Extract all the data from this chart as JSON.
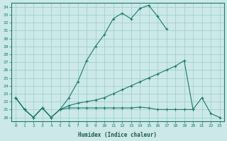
{
  "title": "",
  "xlabel": "Humidex (Indice chaleur)",
  "bg_color": "#cce8e8",
  "grid_color": "#99cccc",
  "line_color": "#1a7a6a",
  "x_ticks": [
    0,
    1,
    2,
    3,
    4,
    5,
    6,
    7,
    8,
    9,
    10,
    11,
    12,
    13,
    14,
    15,
    16,
    17,
    18,
    19,
    20,
    21,
    22,
    23
  ],
  "ylim": [
    19.5,
    34.5
  ],
  "xlim": [
    -0.5,
    23.5
  ],
  "curve1_y": [
    22.5,
    21.0,
    20.0,
    21.2,
    20.0,
    21.0,
    22.5,
    24.5,
    27.2,
    29.0,
    30.5,
    32.5,
    33.2,
    32.5,
    33.8,
    34.2,
    32.8,
    31.2,
    null,
    null,
    null,
    null,
    null,
    null
  ],
  "curve2_y": [
    22.5,
    21.0,
    20.0,
    21.2,
    20.0,
    21.0,
    21.5,
    21.8,
    22.0,
    22.2,
    22.5,
    23.0,
    23.5,
    24.0,
    24.5,
    25.0,
    25.5,
    26.0,
    26.5,
    27.2,
    21.0,
    null,
    null,
    null
  ],
  "curve3_y": [
    22.5,
    21.0,
    20.0,
    21.2,
    20.0,
    21.0,
    21.2,
    21.2,
    21.2,
    21.2,
    21.2,
    21.2,
    21.2,
    21.2,
    21.3,
    21.2,
    21.0,
    21.0,
    21.0,
    21.0,
    21.0,
    22.5,
    20.5,
    20.0
  ],
  "yticks": [
    20,
    21,
    22,
    23,
    24,
    25,
    26,
    27,
    28,
    29,
    30,
    31,
    32,
    33,
    34
  ]
}
